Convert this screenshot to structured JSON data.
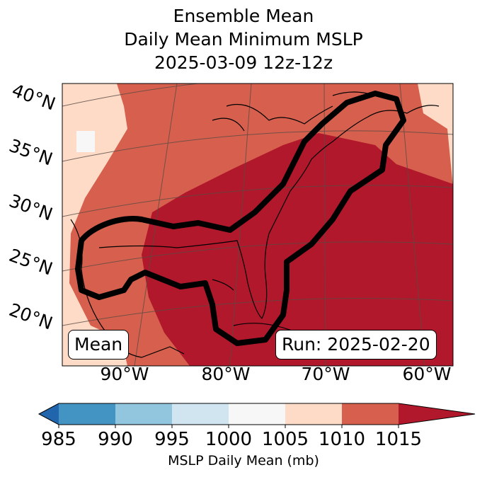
{
  "title": {
    "line1": "Ensemble Mean",
    "line2": "Daily Mean Minimum MSLP",
    "line3": "2025-03-09 12z-12z"
  },
  "map": {
    "lat_labels": [
      "40°N",
      "35°N",
      "30°N",
      "25°N",
      "20°N"
    ],
    "lon_labels": [
      "90°W",
      "80°W",
      "70°W",
      "60°W"
    ],
    "stat_label": "Mean",
    "run_label": "Run: 2025-02-20"
  },
  "colorbar": {
    "label": "MSLP Daily Mean (mb)",
    "ticks": [
      "985",
      "990",
      "995",
      "1000",
      "1005",
      "1010",
      "1015"
    ],
    "colors": {
      "under": "#2166ac",
      "bins": [
        "#4393c3",
        "#92c5de",
        "#d1e5f0",
        "#f7f7f7",
        "#fddbc7",
        "#d6604d"
      ],
      "over": "#b2182b"
    }
  }
}
